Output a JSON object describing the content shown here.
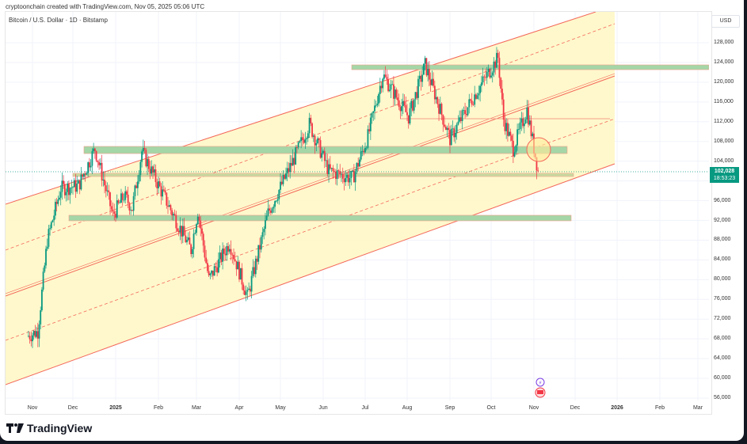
{
  "header": {
    "credit": "cryptoonchain created with TradingView.com, Nov 05, 2025 05:06 UTC",
    "symbol": "Bitcoin / U.S. Dollar · 1D · Bitstamp"
  },
  "price_axis": {
    "currency": "USD",
    "ticks": [
      "128,000",
      "124,000",
      "120,000",
      "116,000",
      "112,000",
      "108,000",
      "104,000",
      "96,000",
      "92,000",
      "88,000",
      "84,000",
      "80,000",
      "76,000",
      "72,000",
      "68,000",
      "64,000",
      "60,000",
      "56,000"
    ]
  },
  "time_axis": {
    "ticks": [
      "Nov",
      "Dec",
      "2025",
      "Feb",
      "Mar",
      "Apr",
      "May",
      "Jun",
      "Jul",
      "Aug",
      "Sep",
      "Oct",
      "Nov",
      "Dec",
      "2026",
      "Feb",
      "Mar"
    ]
  },
  "last_price": {
    "value": "102,028",
    "countdown": "18:53:23",
    "color": "#089981"
  },
  "branding": {
    "name": "TradingView"
  },
  "colors": {
    "up": "#089981",
    "down": "#f23645",
    "channel_fill": "#fff7c6",
    "channel_line": "#f4685a",
    "zone_fill": "#a5d6a7"
  },
  "chart_data": {
    "type": "candlestick",
    "title": "Bitcoin / U.S. Dollar · 1D · Bitstamp",
    "ylabel": "USD",
    "ylim": [
      54000,
      131000
    ],
    "grid": true,
    "x_ticks": [
      "Nov 2024",
      "Dec",
      "2025",
      "Feb",
      "Mar",
      "Apr",
      "May",
      "Jun",
      "Jul",
      "Aug",
      "Sep",
      "Oct",
      "Nov",
      "Dec",
      "2026",
      "Feb",
      "Mar"
    ],
    "close_series_approx": [
      {
        "t": "2024-10-28",
        "close": 68500
      },
      {
        "t": "2024-11-05",
        "close": 69500
      },
      {
        "t": "2024-11-12",
        "close": 88000
      },
      {
        "t": "2024-11-22",
        "close": 98500
      },
      {
        "t": "2024-12-05",
        "close": 99000
      },
      {
        "t": "2024-12-17",
        "close": 106500
      },
      {
        "t": "2024-12-30",
        "close": 93000
      },
      {
        "t": "2025-01-07",
        "close": 97000
      },
      {
        "t": "2025-01-13",
        "close": 94500
      },
      {
        "t": "2025-01-20",
        "close": 106000
      },
      {
        "t": "2025-02-03",
        "close": 98000
      },
      {
        "t": "2025-02-25",
        "close": 86000
      },
      {
        "t": "2025-03-02",
        "close": 94000
      },
      {
        "t": "2025-03-10",
        "close": 80000
      },
      {
        "t": "2025-03-25",
        "close": 87500
      },
      {
        "t": "2025-04-07",
        "close": 76500
      },
      {
        "t": "2025-04-22",
        "close": 93500
      },
      {
        "t": "2025-05-10",
        "close": 104000
      },
      {
        "t": "2025-05-22",
        "close": 111500
      },
      {
        "t": "2025-06-05",
        "close": 102000
      },
      {
        "t": "2025-06-22",
        "close": 100500
      },
      {
        "t": "2025-07-03",
        "close": 109000
      },
      {
        "t": "2025-07-14",
        "close": 121500
      },
      {
        "t": "2025-08-02",
        "close": 113000
      },
      {
        "t": "2025-08-14",
        "close": 123500
      },
      {
        "t": "2025-09-01",
        "close": 108500
      },
      {
        "t": "2025-09-18",
        "close": 117000
      },
      {
        "t": "2025-10-06",
        "close": 125000
      },
      {
        "t": "2025-10-10",
        "close": 112500
      },
      {
        "t": "2025-10-17",
        "close": 106500
      },
      {
        "t": "2025-10-27",
        "close": 114500
      },
      {
        "t": "2025-11-04",
        "close": 102028
      }
    ],
    "last_price": 102028,
    "annotations": {
      "ascending_channel": {
        "upper": [
          {
            "t": "2024-10-26",
            "p": 101500
          },
          {
            "t": "2025-12-05",
            "p": 146000
          }
        ],
        "middle": [
          {
            "t": "2024-10-26",
            "p": 74000
          },
          {
            "t": "2025-12-15",
            "p": 120000
          }
        ],
        "lower": [
          {
            "t": "2024-10-26",
            "p": 56500
          },
          {
            "t": "2025-12-15",
            "p": 103500
          }
        ],
        "quarter_lines_dashed": true
      },
      "horizontal_zones": [
        {
          "from": "2025-06-28",
          "to": "2026-03",
          "low": 123000,
          "high": 123800
        },
        {
          "from": "2024-11-28",
          "to": "2025-11-25",
          "low": 106000,
          "high": 107300
        },
        {
          "from": "2024-11-22",
          "to": "2025-11-25",
          "low": 101000,
          "high": 101700
        },
        {
          "from": "2024-11-17",
          "to": "2025-11-25",
          "low": 92000,
          "high": 93000
        }
      ],
      "horizontal_line": {
        "from": "2025-08-05",
        "to": "2025-11-28",
        "price": 112500
      },
      "circle_highlight": {
        "t": "2025-11-03",
        "price": 107000
      }
    }
  }
}
